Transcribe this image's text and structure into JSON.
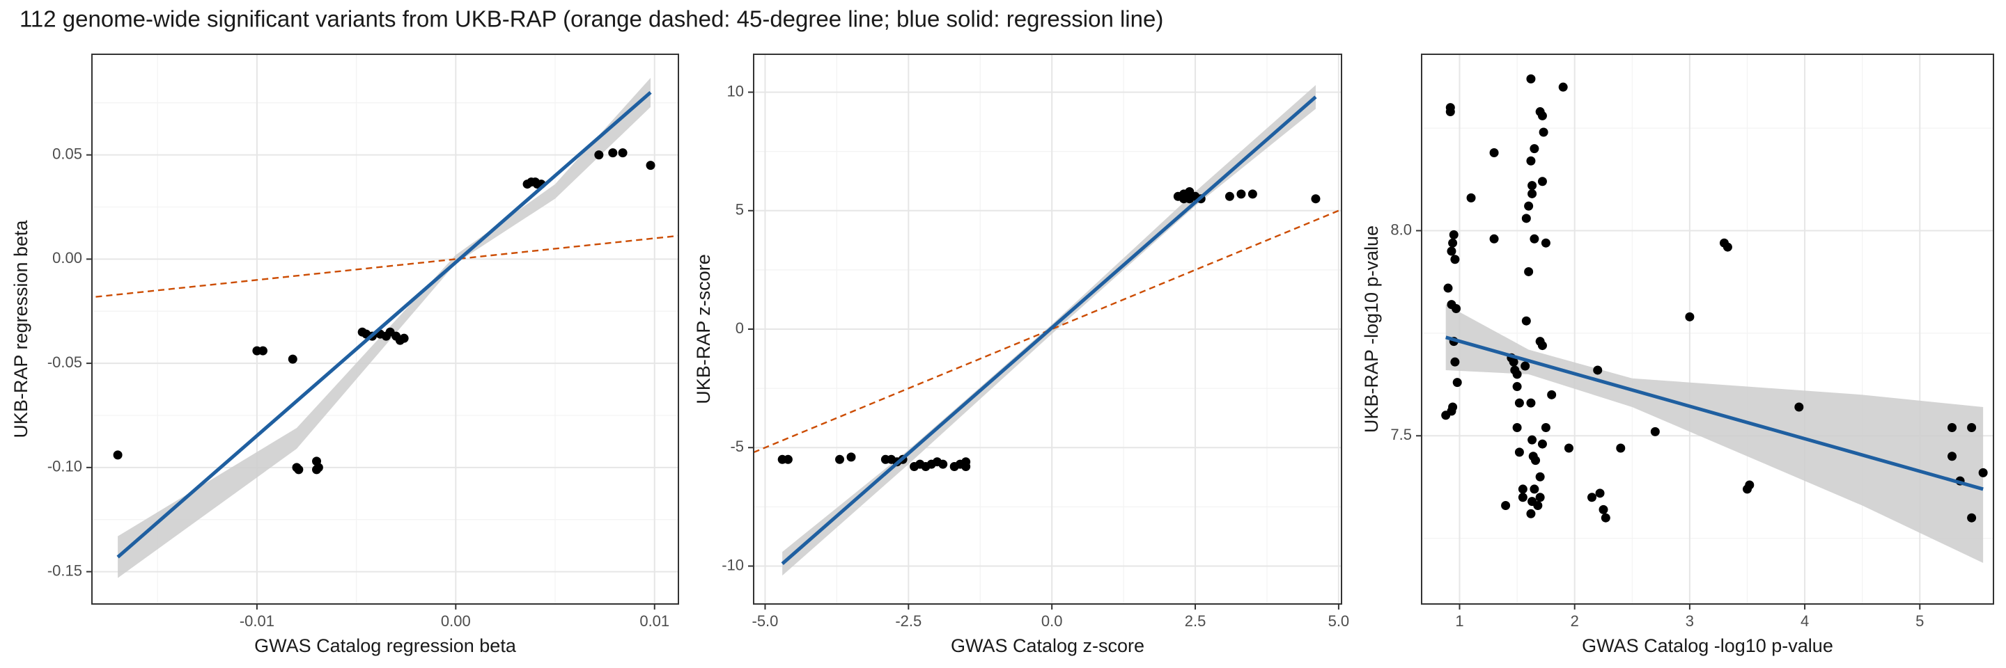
{
  "title": "112 genome-wide significant variants from UKB-RAP (orange dashed: 45-degree line; blue solid: regression line)",
  "chart_data": [
    {
      "type": "scatter",
      "xlabel": "GWAS Catalog regression beta",
      "ylabel": "UKB-RAP regression beta",
      "xlim": [
        -0.0183,
        0.0112
      ],
      "ylim": [
        -0.1655,
        0.0983
      ],
      "xticks": [
        -0.01,
        {
          "value": 0,
          "label": "0.00"
        },
        0.01
      ],
      "yticks": [
        {
          "value": -0.15,
          "label": "-0.15"
        },
        {
          "value": -0.1,
          "label": "-0.10"
        },
        {
          "value": -0.05,
          "label": "-0.05"
        },
        {
          "value": 0,
          "label": "0.00"
        },
        0.05
      ],
      "minor_xticks": [
        -0.015,
        -0.005,
        0.005
      ],
      "minor_yticks": [
        -0.125,
        -0.075,
        -0.025,
        0.025,
        0.075
      ],
      "grid": true,
      "identity_line": true,
      "identity_color": "#cc4c02",
      "point_color": "#000000",
      "x": [
        -0.017,
        -0.01,
        -0.0097,
        -0.0082,
        -0.008,
        -0.0079,
        -0.007,
        -0.0069,
        -0.007,
        -0.0047,
        -0.0045,
        -0.0042,
        -0.0038,
        -0.0035,
        -0.0033,
        -0.003,
        -0.0028,
        -0.0026,
        0.0036,
        0.0038,
        0.004,
        0.0041,
        0.0043,
        0.0072,
        0.0079,
        0.0084,
        0.0098
      ],
      "values": [
        -0.094,
        -0.044,
        -0.044,
        -0.048,
        -0.1,
        -0.101,
        -0.097,
        -0.1,
        -0.101,
        -0.035,
        -0.036,
        -0.037,
        -0.036,
        -0.037,
        -0.035,
        -0.037,
        -0.039,
        -0.038,
        0.036,
        0.037,
        0.037,
        0.036,
        0.036,
        0.05,
        0.051,
        0.051,
        0.045
      ],
      "fit": {
        "color": "#1f5fa0",
        "x": [
          -0.017,
          0.0098
        ],
        "values": [
          -0.143,
          0.08
        ]
      },
      "band": {
        "color": "#cccccc",
        "x": [
          -0.017,
          -0.008,
          0,
          0.005,
          0.0098
        ],
        "lower": [
          -0.153,
          -0.091,
          -0.002,
          0.029,
          0.073
        ],
        "upper": [
          -0.133,
          -0.081,
          0.002,
          0.036,
          0.087
        ]
      }
    },
    {
      "type": "scatter",
      "xlabel": "GWAS Catalog z-score",
      "ylabel": "UKB-RAP z-score",
      "xlim": [
        -5.2,
        5.05
      ],
      "ylim": [
        -11.6,
        11.6
      ],
      "xticks": [
        {
          "value": -5,
          "label": "-5.0"
        },
        -2.5,
        {
          "value": 0,
          "label": "0.0"
        },
        2.5,
        {
          "value": 5,
          "label": "5.0"
        }
      ],
      "yticks": [
        -10,
        -5,
        0,
        5,
        10
      ],
      "minor_xticks": [
        -3.75,
        -1.25,
        1.25,
        3.75
      ],
      "minor_yticks": [
        -7.5,
        -2.5,
        2.5,
        7.5
      ],
      "grid": true,
      "identity_line": true,
      "identity_color": "#cc4c02",
      "point_color": "#000000",
      "x": [
        -4.7,
        -4.6,
        -3.7,
        -3.5,
        -2.9,
        -2.8,
        -2.7,
        -2.6,
        -2.4,
        -2.3,
        -2.2,
        -2.1,
        -2.0,
        -1.9,
        -1.7,
        -1.6,
        -1.5,
        -1.5,
        2.2,
        2.3,
        2.4,
        2.4,
        2.5,
        2.3,
        2.6,
        3.1,
        3.3,
        3.5,
        4.6
      ],
      "values": [
        -5.5,
        -5.5,
        -5.5,
        -5.4,
        -5.5,
        -5.5,
        -5.6,
        -5.5,
        -5.8,
        -5.7,
        -5.8,
        -5.7,
        -5.6,
        -5.7,
        -5.8,
        -5.7,
        -5.6,
        -5.8,
        5.6,
        5.7,
        5.8,
        5.5,
        5.6,
        5.5,
        5.5,
        5.6,
        5.7,
        5.7,
        5.5
      ],
      "fit": {
        "color": "#1f5fa0",
        "x": [
          -4.7,
          4.6
        ],
        "values": [
          -9.9,
          9.8
        ]
      },
      "band": {
        "color": "#cccccc",
        "x": [
          -4.7,
          -2.5,
          0,
          2.5,
          4.6
        ],
        "lower": [
          -10.4,
          -5.7,
          -0.2,
          5.2,
          9.3
        ],
        "upper": [
          -9.4,
          -5.1,
          0.2,
          5.8,
          10.3
        ]
      }
    },
    {
      "type": "scatter",
      "xlabel": "GWAS Catalog -log10 p-value",
      "ylabel": "UKB-RAP -log10 p-value",
      "xlim": [
        0.67,
        5.64
      ],
      "ylim": [
        7.09,
        8.43
      ],
      "xticks": [
        1,
        2,
        3,
        4,
        5
      ],
      "yticks": [
        {
          "value": 7.5,
          "label": "7.5"
        },
        {
          "value": 8,
          "label": "8.0"
        }
      ],
      "minor_xticks": [
        1.5,
        2.5,
        3.5,
        4.5
      ],
      "minor_yticks": [
        7.25,
        7.75,
        8.25
      ],
      "grid": true,
      "identity_line": false,
      "identity_color": "#cc4c02",
      "point_color": "#000000",
      "x": [
        0.88,
        0.92,
        0.92,
        0.93,
        0.94,
        0.95,
        0.96,
        0.9,
        0.93,
        0.95,
        0.97,
        0.96,
        0.98,
        0.93,
        0.94,
        1.1,
        1.3,
        1.3,
        1.4,
        1.45,
        1.47,
        1.48,
        1.5,
        1.5,
        1.52,
        1.5,
        1.52,
        1.55,
        1.55,
        1.57,
        1.58,
        1.6,
        1.58,
        1.6,
        1.62,
        1.63,
        1.65,
        1.62,
        1.63,
        1.65,
        1.62,
        1.63,
        1.64,
        1.66,
        1.65,
        1.63,
        1.62,
        1.68,
        1.7,
        1.7,
        1.72,
        1.7,
        1.72,
        1.72,
        1.73,
        1.72,
        1.7,
        1.75,
        1.9,
        1.8,
        1.75,
        1.95,
        2.15,
        2.2,
        2.22,
        2.25,
        2.27,
        2.4,
        2.7,
        3.0,
        3.3,
        3.33,
        3.5,
        3.52,
        3.95,
        5.28,
        5.28,
        5.45,
        5.35,
        5.45,
        5.55
      ],
      "values": [
        7.55,
        8.3,
        8.29,
        7.95,
        7.97,
        7.99,
        7.93,
        7.86,
        7.82,
        7.73,
        7.81,
        7.68,
        7.63,
        7.56,
        7.57,
        8.08,
        8.19,
        7.98,
        7.33,
        7.69,
        7.68,
        7.66,
        7.65,
        7.62,
        7.58,
        7.52,
        7.46,
        7.37,
        7.35,
        7.67,
        7.78,
        7.9,
        8.03,
        8.06,
        8.17,
        8.11,
        8.2,
        8.37,
        8.09,
        7.98,
        7.58,
        7.49,
        7.45,
        7.44,
        7.37,
        7.34,
        7.31,
        7.33,
        7.35,
        7.4,
        7.48,
        7.73,
        7.72,
        8.12,
        8.24,
        8.28,
        8.29,
        7.97,
        8.35,
        7.6,
        7.52,
        7.47,
        7.35,
        7.66,
        7.36,
        7.32,
        7.3,
        7.47,
        7.51,
        7.79,
        7.97,
        7.96,
        7.37,
        7.38,
        7.57,
        7.52,
        7.45,
        7.52,
        7.39,
        7.3,
        7.41
      ],
      "fit": {
        "color": "#1f5fa0",
        "x": [
          0.88,
          5.55
        ],
        "values": [
          7.74,
          7.37
        ]
      },
      "band": {
        "color": "#cccccc",
        "x": [
          0.88,
          1.6,
          2.5,
          3.5,
          4.5,
          5.55
        ],
        "lower": [
          7.66,
          7.65,
          7.57,
          7.45,
          7.33,
          7.19
        ],
        "upper": [
          7.82,
          7.71,
          7.64,
          7.62,
          7.6,
          7.57
        ]
      }
    }
  ]
}
